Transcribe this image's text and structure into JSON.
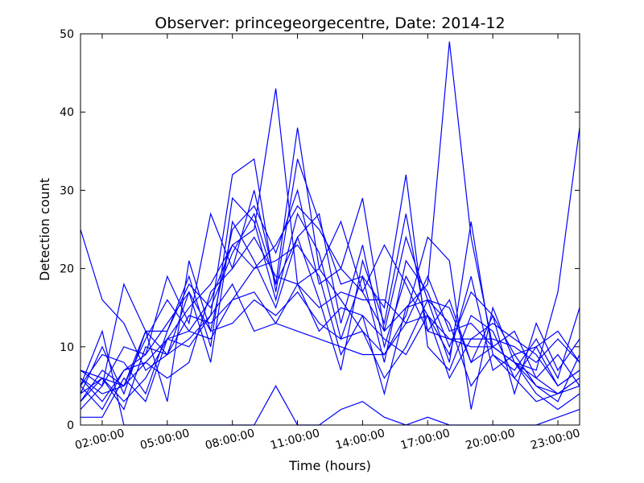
{
  "chart_data": {
    "type": "line",
    "title": "Observer: princegeorgecentre, Date: 2014-12",
    "xlabel": "Time (hours)",
    "ylabel": "Detection count",
    "xlim": [
      1,
      24
    ],
    "ylim": [
      0,
      50
    ],
    "x_ticks": [
      2,
      5,
      8,
      11,
      14,
      17,
      20,
      23
    ],
    "x_tick_labels": [
      "02:00:00",
      "05:00:00",
      "08:00:00",
      "11:00:00",
      "14:00:00",
      "17:00:00",
      "20:00:00",
      "23:00:00"
    ],
    "y_ticks": [
      0,
      10,
      20,
      30,
      40,
      50
    ],
    "y_tick_labels": [
      "0",
      "10",
      "20",
      "30",
      "40",
      "50"
    ],
    "line_color": "#0000ff",
    "grid": false,
    "x": [
      1,
      2,
      3,
      4,
      5,
      6,
      7,
      8,
      9,
      10,
      11,
      12,
      13,
      14,
      15,
      16,
      17,
      18,
      19,
      20,
      21,
      22,
      23,
      24
    ],
    "series": [
      {
        "values": [
          25,
          16,
          13,
          7,
          9,
          14,
          13,
          16,
          20,
          23,
          28,
          25,
          20,
          17,
          23,
          18,
          12,
          16,
          8,
          10,
          8,
          5,
          4,
          6
        ]
      },
      {
        "values": [
          7,
          5,
          18,
          12,
          9,
          11,
          14,
          32,
          34,
          17,
          34,
          26,
          18,
          19,
          15,
          32,
          10,
          7,
          14,
          12,
          6,
          3,
          4,
          5
        ]
      },
      {
        "values": [
          4,
          6,
          5,
          8,
          11,
          15,
          18,
          23,
          25,
          43,
          18,
          20,
          26,
          17,
          12,
          15,
          18,
          49,
          24,
          10,
          8,
          7,
          17,
          38
        ]
      },
      {
        "values": [
          6,
          3,
          7,
          9,
          19,
          13,
          27,
          20,
          30,
          18,
          38,
          20,
          16,
          12,
          9,
          14,
          24,
          21,
          2,
          15,
          8,
          6,
          9,
          5
        ]
      },
      {
        "values": [
          3,
          7,
          5,
          12,
          3,
          21,
          12,
          25,
          28,
          22,
          30,
          18,
          20,
          29,
          12,
          24,
          16,
          8,
          26,
          9,
          6,
          10,
          5,
          7
        ]
      },
      {
        "values": [
          5,
          9,
          8,
          4,
          12,
          19,
          10,
          29,
          26,
          16,
          27,
          22,
          11,
          19,
          8,
          21,
          17,
          10,
          17,
          14,
          4,
          13,
          7,
          11
        ]
      },
      {
        "values": [
          2,
          5,
          10,
          9,
          13,
          17,
          8,
          26,
          21,
          15,
          24,
          27,
          13,
          23,
          10,
          19,
          14,
          9,
          19,
          7,
          9,
          5,
          3,
          9
        ]
      },
      {
        "values": [
          4,
          10,
          4,
          12,
          12,
          18,
          15,
          22,
          27,
          18,
          24,
          16,
          7,
          21,
          13,
          27,
          12,
          11,
          11,
          11,
          10,
          8,
          11,
          8
        ]
      },
      {
        "values": [
          1,
          1,
          6,
          3,
          11,
          10,
          14,
          18,
          12,
          13,
          12,
          11,
          10,
          9,
          9,
          13,
          14,
          11,
          10,
          10,
          8,
          4,
          2,
          4
        ]
      },
      {
        "values": [
          6,
          4,
          5,
          11,
          16,
          12,
          11,
          16,
          17,
          13,
          18,
          15,
          17,
          16,
          16,
          13,
          19,
          12,
          13,
          10,
          12,
          6,
          4,
          6
        ]
      },
      {
        "values": [
          3,
          6,
          2,
          10,
          9,
          17,
          12,
          13,
          16,
          14,
          17,
          13,
          11,
          12,
          6,
          10,
          16,
          13,
          5,
          9,
          7,
          11,
          6,
          15
        ]
      },
      {
        "values": [
          5,
          2,
          7,
          8,
          6,
          8,
          17,
          20,
          24,
          19,
          18,
          12,
          15,
          14,
          4,
          15,
          16,
          15,
          8,
          14,
          9,
          10,
          12,
          8
        ]
      },
      {
        "values": [
          7,
          6,
          3,
          6,
          11,
          12,
          16,
          23,
          20,
          21,
          23,
          19,
          9,
          14,
          11,
          9,
          14,
          6,
          11,
          13,
          11,
          9,
          5,
          7
        ]
      },
      {
        "values": [
          5,
          12,
          0,
          0,
          0,
          0,
          0,
          0,
          0,
          5,
          0,
          0,
          2,
          3,
          1,
          0,
          1,
          0,
          0,
          0,
          0,
          0,
          1,
          2
        ]
      }
    ]
  }
}
